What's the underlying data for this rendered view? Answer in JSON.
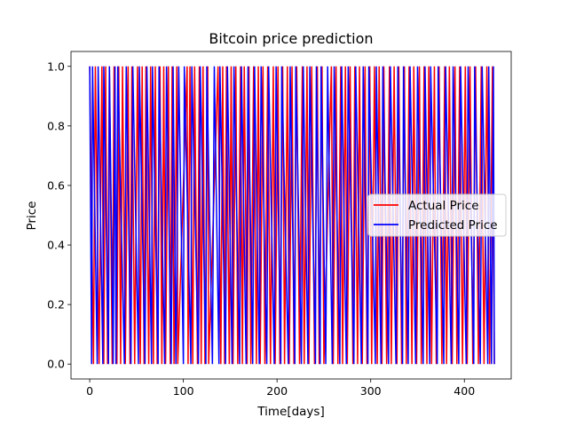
{
  "chart_data": {
    "type": "line",
    "title": "Bitcoin price prediction",
    "xlabel": "Time[days]",
    "ylabel": "Price",
    "xlim": [
      -20,
      450
    ],
    "ylim": [
      -0.05,
      1.05
    ],
    "xticks": [
      0,
      100,
      200,
      300,
      400
    ],
    "yticks": [
      0.0,
      0.2,
      0.4,
      0.6,
      0.8,
      1.0
    ],
    "xtick_labels": [
      "0",
      "100",
      "200",
      "300",
      "400"
    ],
    "ytick_labels": [
      "0.0",
      "0.2",
      "0.4",
      "0.6",
      "0.8",
      "1.0"
    ],
    "grid": false,
    "legend_position": "center-right",
    "series": [
      {
        "name": "Actual Price",
        "color": "#ff0000",
        "segments": [
          [
            0,
            1
          ],
          [
            4,
            0
          ],
          [
            6,
            1
          ],
          [
            10,
            0
          ],
          [
            13,
            1
          ],
          [
            15,
            0
          ],
          [
            17,
            1
          ],
          [
            19,
            0
          ],
          [
            21,
            1
          ],
          [
            24,
            0
          ],
          [
            26,
            1
          ],
          [
            29,
            0
          ],
          [
            31,
            1
          ],
          [
            33,
            0
          ],
          [
            35,
            1
          ],
          [
            38,
            0
          ],
          [
            41,
            1
          ],
          [
            43,
            0
          ],
          [
            45,
            1
          ],
          [
            48,
            0
          ],
          [
            51,
            1
          ],
          [
            54,
            0
          ],
          [
            56,
            1
          ],
          [
            58,
            0
          ],
          [
            60,
            1
          ],
          [
            63,
            0
          ],
          [
            65,
            1
          ],
          [
            68,
            0
          ],
          [
            70,
            1
          ],
          [
            72,
            0
          ],
          [
            75,
            1
          ],
          [
            77,
            0
          ],
          [
            79,
            1
          ],
          [
            81,
            0
          ],
          [
            84,
            1
          ],
          [
            86,
            0
          ],
          [
            88,
            1
          ],
          [
            90,
            0
          ],
          [
            93,
            1
          ],
          [
            94,
            0
          ],
          [
            104,
            1
          ],
          [
            105,
            0
          ],
          [
            107,
            1
          ],
          [
            110,
            0
          ],
          [
            112,
            1
          ],
          [
            115,
            0
          ],
          [
            117,
            1
          ],
          [
            119,
            0
          ],
          [
            121,
            1
          ],
          [
            123,
            0
          ],
          [
            126,
            1
          ],
          [
            127,
            0
          ],
          [
            137,
            1
          ],
          [
            140,
            0
          ],
          [
            142,
            1
          ],
          [
            144,
            0
          ],
          [
            146,
            1
          ],
          [
            149,
            0
          ],
          [
            151,
            1
          ],
          [
            153,
            0
          ],
          [
            156,
            1
          ],
          [
            158,
            0
          ],
          [
            161,
            1
          ],
          [
            163,
            0
          ],
          [
            165,
            1
          ],
          [
            168,
            0
          ],
          [
            170,
            1
          ],
          [
            172,
            0
          ],
          [
            175,
            1
          ],
          [
            178,
            0
          ],
          [
            180,
            1
          ],
          [
            182,
            0
          ],
          [
            185,
            1
          ],
          [
            187,
            0
          ],
          [
            190,
            1
          ],
          [
            193,
            0
          ],
          [
            196,
            1
          ],
          [
            198,
            0
          ],
          [
            201,
            1
          ],
          [
            203,
            0
          ],
          [
            206,
            1
          ],
          [
            208,
            0
          ],
          [
            211,
            1
          ],
          [
            213,
            0
          ],
          [
            216,
            1
          ],
          [
            218,
            0
          ],
          [
            221,
            1
          ],
          [
            224,
            0
          ],
          [
            227,
            1
          ],
          [
            229,
            0
          ],
          [
            232,
            1
          ],
          [
            234,
            0
          ],
          [
            237,
            1
          ],
          [
            240,
            0
          ],
          [
            243,
            1
          ],
          [
            245,
            0
          ],
          [
            248,
            1
          ],
          [
            250,
            0
          ],
          [
            258,
            1
          ],
          [
            260,
            0
          ],
          [
            263,
            1
          ],
          [
            265,
            0
          ],
          [
            268,
            1
          ],
          [
            270,
            0
          ],
          [
            273,
            1
          ],
          [
            275,
            0
          ],
          [
            278,
            1
          ],
          [
            281,
            0
          ],
          [
            283,
            1
          ],
          [
            286,
            0
          ],
          [
            288,
            1
          ],
          [
            291,
            0
          ],
          [
            294,
            1
          ],
          [
            296,
            0
          ],
          [
            299,
            1
          ],
          [
            301,
            0
          ],
          [
            304,
            1
          ],
          [
            307,
            0
          ],
          [
            309,
            1
          ],
          [
            312,
            0
          ],
          [
            314,
            1
          ],
          [
            317,
            0
          ],
          [
            320,
            1
          ],
          [
            322,
            0
          ],
          [
            325,
            1
          ],
          [
            328,
            0
          ],
          [
            330,
            1
          ],
          [
            333,
            0
          ],
          [
            336,
            1
          ],
          [
            338,
            0
          ],
          [
            341,
            1
          ],
          [
            344,
            0
          ],
          [
            346,
            1
          ],
          [
            349,
            0
          ],
          [
            352,
            1
          ],
          [
            354,
            0
          ],
          [
            357,
            1
          ],
          [
            360,
            0
          ],
          [
            362,
            1
          ],
          [
            365,
            0
          ],
          [
            368,
            1
          ],
          [
            370,
            0
          ],
          [
            373,
            1
          ],
          [
            376,
            0
          ],
          [
            379,
            1
          ],
          [
            381,
            0
          ],
          [
            384,
            1
          ],
          [
            387,
            0
          ],
          [
            390,
            1
          ],
          [
            392,
            0
          ],
          [
            395,
            1
          ],
          [
            398,
            0
          ],
          [
            401,
            1
          ],
          [
            403,
            0
          ],
          [
            406,
            1
          ],
          [
            409,
            0
          ],
          [
            412,
            1
          ],
          [
            415,
            0
          ],
          [
            418,
            1
          ],
          [
            421,
            0
          ],
          [
            424,
            1
          ],
          [
            427,
            0
          ],
          [
            430,
            1
          ],
          [
            432,
            0
          ]
        ]
      },
      {
        "name": "Predicted Price",
        "color": "#0000ff",
        "segments": [
          [
            0,
            1
          ],
          [
            2,
            0
          ],
          [
            3,
            1
          ],
          [
            8,
            0
          ],
          [
            9,
            1
          ],
          [
            14,
            0
          ],
          [
            15,
            1
          ],
          [
            20,
            0
          ],
          [
            21,
            1
          ],
          [
            25,
            0
          ],
          [
            27,
            1
          ],
          [
            28,
            0
          ],
          [
            30,
            1
          ],
          [
            37,
            0
          ],
          [
            39,
            1
          ],
          [
            44,
            0
          ],
          [
            46,
            1
          ],
          [
            52,
            0
          ],
          [
            53,
            1
          ],
          [
            59,
            0
          ],
          [
            61,
            1
          ],
          [
            66,
            0
          ],
          [
            67,
            1
          ],
          [
            73,
            0
          ],
          [
            74,
            1
          ],
          [
            80,
            0
          ],
          [
            82,
            1
          ],
          [
            87,
            0
          ],
          [
            89,
            1
          ],
          [
            92,
            0
          ],
          [
            95,
            1
          ],
          [
            100,
            0
          ],
          [
            101,
            1
          ],
          [
            108,
            0
          ],
          [
            109,
            1
          ],
          [
            116,
            0
          ],
          [
            118,
            1
          ],
          [
            124,
            0
          ],
          [
            125,
            1
          ],
          [
            131,
            0
          ],
          [
            133,
            1
          ],
          [
            138,
            0
          ],
          [
            139,
            1
          ],
          [
            145,
            0
          ],
          [
            147,
            1
          ],
          [
            152,
            0
          ],
          [
            154,
            1
          ],
          [
            160,
            0
          ],
          [
            162,
            1
          ],
          [
            167,
            0
          ],
          [
            169,
            1
          ],
          [
            174,
            0
          ],
          [
            176,
            1
          ],
          [
            181,
            0
          ],
          [
            183,
            1
          ],
          [
            189,
            0
          ],
          [
            191,
            1
          ],
          [
            197,
            0
          ],
          [
            199,
            1
          ],
          [
            204,
            0
          ],
          [
            205,
            1
          ],
          [
            212,
            0
          ],
          [
            214,
            1
          ],
          [
            219,
            0
          ],
          [
            220,
            1
          ],
          [
            226,
            0
          ],
          [
            228,
            1
          ],
          [
            233,
            0
          ],
          [
            235,
            1
          ],
          [
            241,
            0
          ],
          [
            242,
            1
          ],
          [
            246,
            0
          ],
          [
            247,
            1
          ],
          [
            252,
            0
          ],
          [
            254,
            1
          ],
          [
            259,
            0
          ],
          [
            261,
            1
          ],
          [
            267,
            0
          ],
          [
            269,
            1
          ],
          [
            274,
            0
          ],
          [
            276,
            1
          ],
          [
            282,
            0
          ],
          [
            284,
            1
          ],
          [
            290,
            0
          ],
          [
            292,
            1
          ],
          [
            297,
            0
          ],
          [
            298,
            1
          ],
          [
            305,
            0
          ],
          [
            306,
            1
          ],
          [
            311,
            0
          ],
          [
            313,
            1
          ],
          [
            319,
            0
          ],
          [
            321,
            1
          ],
          [
            327,
            0
          ],
          [
            329,
            1
          ],
          [
            334,
            0
          ],
          [
            335,
            1
          ],
          [
            340,
            0
          ],
          [
            342,
            1
          ],
          [
            348,
            0
          ],
          [
            350,
            1
          ],
          [
            356,
            0
          ],
          [
            358,
            1
          ],
          [
            363,
            0
          ],
          [
            364,
            1
          ],
          [
            371,
            0
          ],
          [
            372,
            1
          ],
          [
            378,
            0
          ],
          [
            380,
            1
          ],
          [
            386,
            0
          ],
          [
            388,
            1
          ],
          [
            394,
            0
          ],
          [
            396,
            1
          ],
          [
            402,
            0
          ],
          [
            404,
            1
          ],
          [
            410,
            0
          ],
          [
            411,
            1
          ],
          [
            417,
            0
          ],
          [
            419,
            1
          ],
          [
            425,
            0
          ],
          [
            426,
            1
          ],
          [
            429,
            0
          ],
          [
            431,
            1
          ],
          [
            432,
            0
          ]
        ]
      }
    ]
  }
}
